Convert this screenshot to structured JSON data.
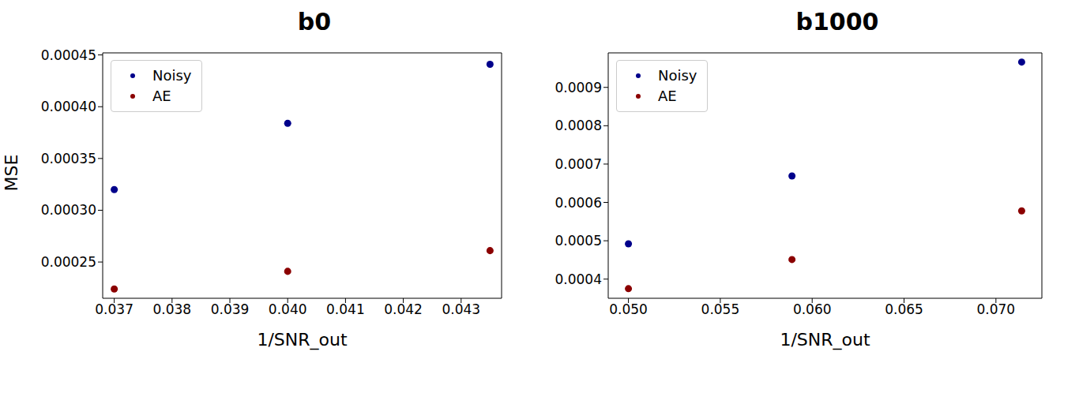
{
  "chart_data": [
    {
      "type": "scatter",
      "title": "b0",
      "x_label": "1/SNR_out",
      "y_label": "MSE",
      "x": [
        0.037,
        0.04,
        0.0435
      ],
      "series": [
        {
          "name": "Noisy",
          "color": "#00008b",
          "marker": "circle",
          "values": [
            0.00032,
            0.000384,
            0.000441
          ]
        },
        {
          "name": "AE",
          "color": "#8b0000",
          "marker": "circle",
          "values": [
            0.000224,
            0.000241,
            0.000261
          ]
        }
      ],
      "xlim": [
        0.0368,
        0.0437
      ],
      "xticks": [
        0.037,
        0.038,
        0.039,
        {
          "value": 0.04,
          "label": "0.040"
        },
        0.041,
        0.042,
        0.043
      ],
      "ylim": [
        0.000215,
        0.000452
      ],
      "yticks": [
        0.00025,
        {
          "value": 0.0003,
          "label": "0.00030"
        },
        0.00035,
        {
          "value": 0.0004,
          "label": "0.00040"
        },
        0.00045
      ],
      "legend": "upper left",
      "grid": false
    },
    {
      "type": "scatter",
      "title": "b1000",
      "x_label": "1/SNR_out",
      "x": [
        0.05,
        0.0589,
        0.0714
      ],
      "series": [
        {
          "name": "Noisy",
          "color": "#00008b",
          "marker": "circle",
          "values": [
            0.000492,
            0.000669,
            0.000966
          ]
        },
        {
          "name": "AE",
          "color": "#8b0000",
          "marker": "circle",
          "values": [
            0.000375,
            0.000451,
            0.000578
          ]
        }
      ],
      "xlim": [
        0.0489,
        0.0725
      ],
      "xticks": [
        {
          "value": 0.05,
          "label": "0.050"
        },
        0.055,
        {
          "value": 0.06,
          "label": "0.060"
        },
        0.065,
        {
          "value": 0.07,
          "label": "0.070"
        }
      ],
      "ylim": [
        0.00035,
        0.00099
      ],
      "yticks": [
        0.0004,
        0.0005,
        0.0006,
        0.0007,
        0.0008,
        0.0009
      ],
      "legend": "upper left",
      "grid": false
    }
  ]
}
